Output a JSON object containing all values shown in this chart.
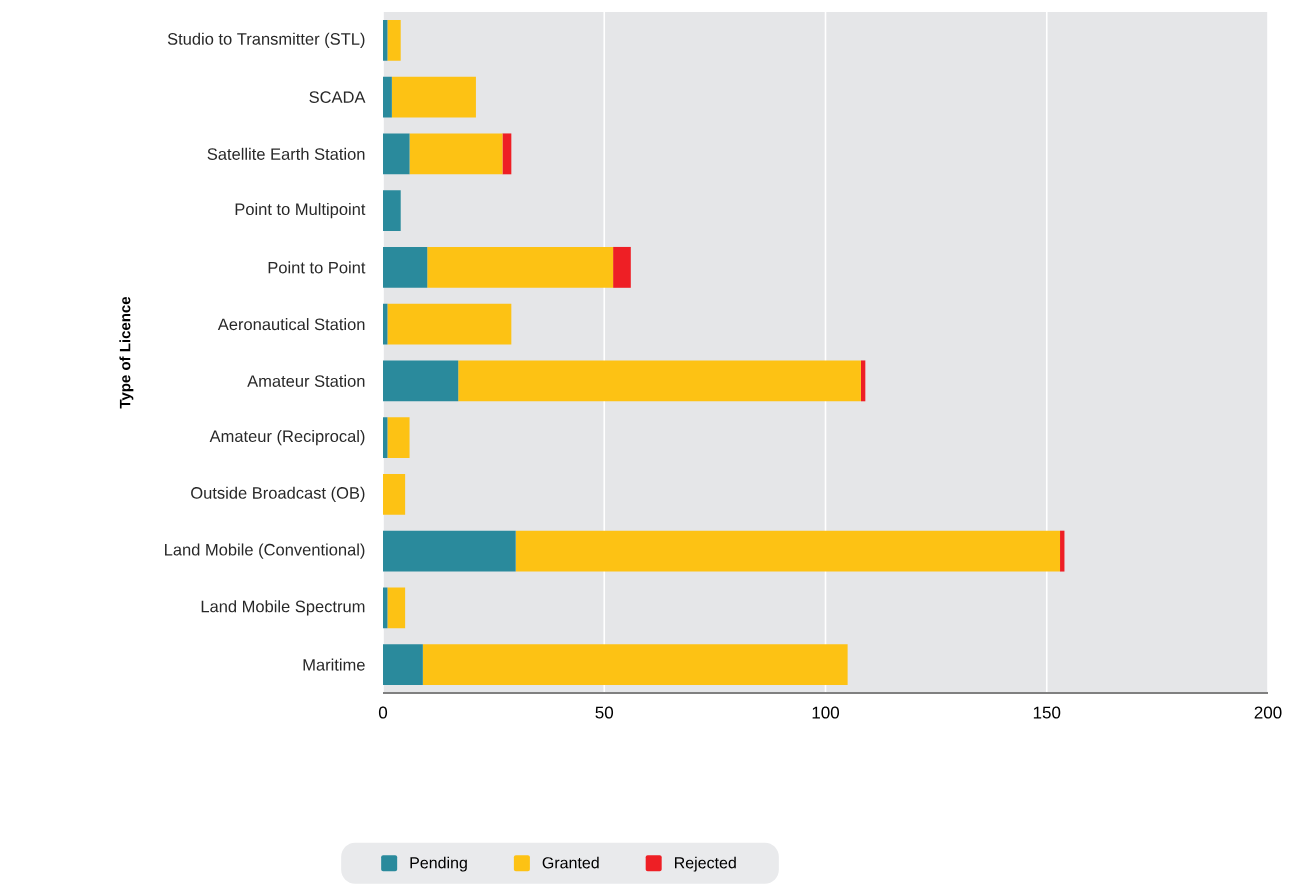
{
  "chart_data": {
    "type": "bar",
    "orientation": "horizontal",
    "stacked": true,
    "ylabel": "Type of Licence",
    "categories": [
      "Studio to Transmitter (STL)",
      "SCADA",
      "Satellite Earth Station",
      "Point to Multipoint",
      "Point to Point",
      "Aeronautical Station",
      "Amateur Station",
      "Amateur (Reciprocal)",
      "Outside Broadcast (OB)",
      "Land Mobile (Conventional)",
      "Land Mobile Spectrum",
      "Maritime"
    ],
    "series": [
      {
        "name": "Pending",
        "color": "#2a8a9c",
        "values": [
          1,
          2,
          6,
          4,
          10,
          1,
          17,
          1,
          0,
          30,
          1,
          9
        ]
      },
      {
        "name": "Granted",
        "color": "#fdc214",
        "values": [
          3,
          19,
          21,
          0,
          42,
          28,
          91,
          5,
          5,
          123,
          4,
          96
        ]
      },
      {
        "name": "Rejected",
        "color": "#ee1f25",
        "values": [
          0,
          0,
          2,
          0,
          4,
          0,
          1,
          0,
          0,
          1,
          0,
          0
        ]
      }
    ],
    "xlim": [
      0,
      200
    ],
    "xticks": [
      0,
      50,
      100,
      150,
      200
    ],
    "grid": "x",
    "legend": "bottom"
  }
}
